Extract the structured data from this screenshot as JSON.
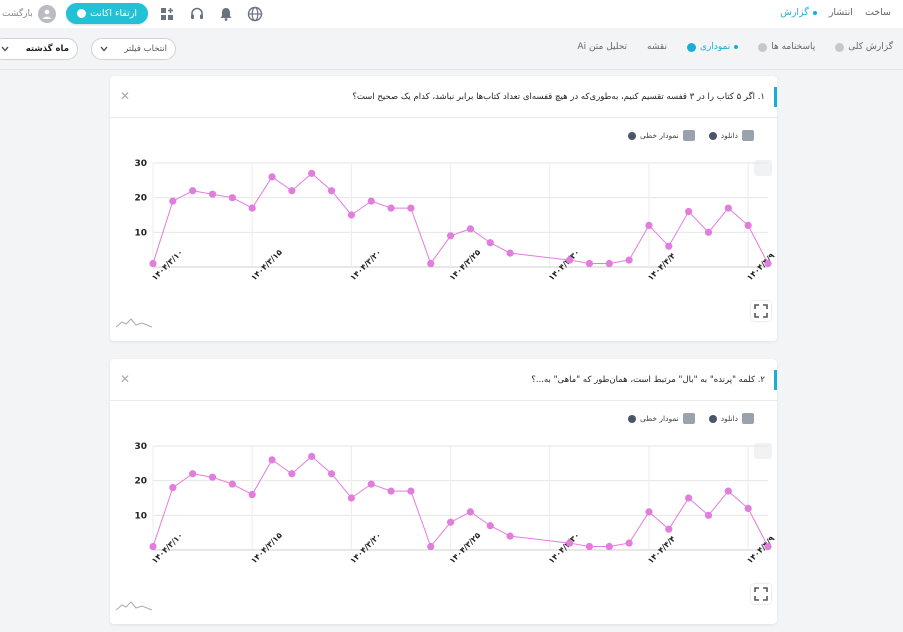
{
  "topbar": {
    "nav": [
      "ساخت",
      "انتشار",
      "گزارش"
    ],
    "active_nav": "گزارش",
    "upgrade_label": "ارتقاء اکانت",
    "back_label": "بازگشت"
  },
  "subbar": {
    "tabs": [
      {
        "label": "گزارش کلی",
        "active": false
      },
      {
        "label": "پاسخنامه ها",
        "active": false
      },
      {
        "label": "نموداری",
        "active": true
      },
      {
        "label": "نقشه",
        "active": false
      },
      {
        "label": "تحلیل متن Ai",
        "active": false
      }
    ],
    "filter_placeholder": "انتخاب فیلتر",
    "period_value": "ماه گذشته"
  },
  "cards": [
    {
      "question": "۱. اگر ۵ کتاب را در ۳ قفسه تقسیم کنیم، به‌طوری‌که در هیچ قفسه‌ای تعداد کتاب‌ها برابر نباشد، کدام یک صحیح است؟",
      "download_label": "دانلود",
      "chart_type_label": "نمودار خطی"
    },
    {
      "question": "۲. کلمه \"پرنده\" به \"بال\" مرتبط است، همان‌طور که \"ماهی\" به...؟",
      "download_label": "دانلود",
      "chart_type_label": "نمودار خطی"
    }
  ],
  "colors": {
    "accent": "#1aaed6",
    "line": "#e57be0",
    "point": "#e07ddd"
  },
  "chart_data": [
    {
      "type": "line",
      "ylim": [
        0,
        30
      ],
      "yticks": [
        10,
        20,
        30
      ],
      "xlabels": [
        "۱۴۰۴/۳/۱۰",
        "۱۴۰۴/۳/۱۵",
        "۱۴۰۴/۳/۲۰",
        "۱۴۰۴/۳/۲۵",
        "۱۴۰۴/۳/۳۰",
        "۱۴۰۴/۴/۴",
        "۱۴۰۴/۴/۹"
      ],
      "x": [
        0,
        1,
        2,
        3,
        4,
        5,
        6,
        7,
        8,
        9,
        10,
        11,
        12,
        13,
        14,
        15,
        16,
        17,
        18,
        21,
        22,
        23,
        24,
        25,
        26,
        27,
        28,
        29,
        30,
        31
      ],
      "values": [
        1,
        19,
        22,
        21,
        20,
        17,
        26,
        22,
        27,
        22,
        15,
        19,
        17,
        17,
        1,
        9,
        11,
        7,
        4,
        2,
        1,
        1,
        2,
        12,
        6,
        16,
        10,
        17,
        12,
        1
      ]
    },
    {
      "type": "line",
      "ylim": [
        0,
        30
      ],
      "yticks": [
        10,
        20,
        30
      ],
      "xlabels": [
        "۱۴۰۴/۳/۱۰",
        "۱۴۰۴/۳/۱۵",
        "۱۴۰۴/۳/۲۰",
        "۱۴۰۴/۳/۲۵",
        "۱۴۰۴/۳/۳۰",
        "۱۴۰۴/۴/۴",
        "۱۴۰۴/۴/۹"
      ],
      "x": [
        0,
        1,
        2,
        3,
        4,
        5,
        6,
        7,
        8,
        9,
        10,
        11,
        12,
        13,
        14,
        15,
        16,
        17,
        18,
        21,
        22,
        23,
        24,
        25,
        26,
        27,
        28,
        29,
        30,
        31
      ],
      "values": [
        1,
        18,
        22,
        21,
        19,
        16,
        26,
        22,
        27,
        22,
        15,
        19,
        17,
        17,
        1,
        8,
        11,
        7,
        4,
        2,
        1,
        1,
        2,
        11,
        6,
        15,
        10,
        17,
        12,
        1
      ]
    }
  ]
}
